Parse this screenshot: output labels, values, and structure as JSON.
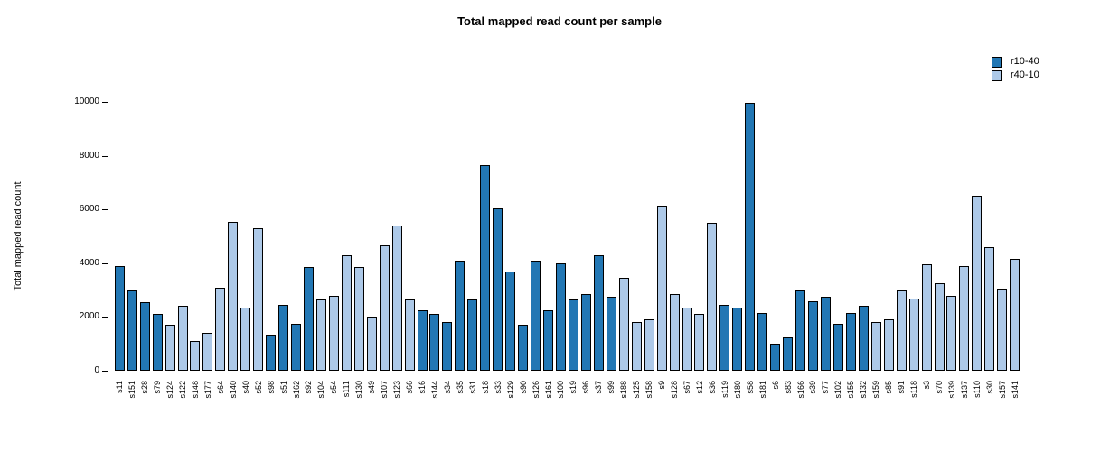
{
  "title": "Total mapped read count per sample",
  "y_axis": {
    "label": "Total mapped read count",
    "ticks": [
      0,
      2000,
      4000,
      6000,
      8000,
      10000
    ]
  },
  "legend": {
    "items": [
      {
        "label": "r10-40",
        "color": "#2277b4"
      },
      {
        "label": "r40-10",
        "color": "#adc9e8"
      }
    ]
  },
  "chart_data": {
    "type": "bar",
    "title": "Total mapped read count per sample",
    "xlabel": "",
    "ylabel": "Total mapped read count",
    "ylim": [
      0,
      10000
    ],
    "y_ticks": [
      0,
      2000,
      4000,
      6000,
      8000,
      10000
    ],
    "grid": false,
    "legend_position": "top-right",
    "series": [
      {
        "name": "r10-40",
        "color": "#2277b4"
      },
      {
        "name": "r40-10",
        "color": "#adc9e8"
      }
    ],
    "categories": [
      "s11",
      "s151",
      "s28",
      "s79",
      "s124",
      "s122",
      "s148",
      "s177",
      "s64",
      "s140",
      "s40",
      "s52",
      "s98",
      "s51",
      "s162",
      "s92",
      "s104",
      "s54",
      "s111",
      "s130",
      "s49",
      "s107",
      "s123",
      "s66",
      "s16",
      "s144",
      "s34",
      "s35",
      "s31",
      "s18",
      "s33",
      "s129",
      "s90",
      "s126",
      "s161",
      "s100",
      "s19",
      "s96",
      "s37",
      "s99",
      "s188",
      "s125",
      "s158",
      "s9",
      "s128",
      "s67",
      "s12",
      "s36",
      "s119",
      "s180",
      "s58",
      "s181",
      "s6",
      "s83",
      "s166",
      "s39",
      "s77",
      "s102",
      "s155",
      "s132",
      "s159",
      "s85",
      "s91",
      "s118",
      "s3",
      "s70",
      "s139",
      "s137",
      "s110",
      "s30",
      "s157",
      "s141"
    ],
    "groups": [
      "r10-40",
      "r10-40",
      "r10-40",
      "r10-40",
      "r40-10",
      "r40-10",
      "r40-10",
      "r40-10",
      "r40-10",
      "r40-10",
      "r40-10",
      "r40-10",
      "r10-40",
      "r10-40",
      "r10-40",
      "r10-40",
      "r40-10",
      "r40-10",
      "r40-10",
      "r40-10",
      "r40-10",
      "r40-10",
      "r40-10",
      "r40-10",
      "r10-40",
      "r10-40",
      "r10-40",
      "r10-40",
      "r10-40",
      "r10-40",
      "r10-40",
      "r10-40",
      "r10-40",
      "r10-40",
      "r10-40",
      "r10-40",
      "r10-40",
      "r10-40",
      "r10-40",
      "r10-40",
      "r40-10",
      "r40-10",
      "r40-10",
      "r40-10",
      "r40-10",
      "r40-10",
      "r40-10",
      "r40-10",
      "r10-40",
      "r10-40",
      "r10-40",
      "r10-40",
      "r10-40",
      "r10-40",
      "r10-40",
      "r10-40",
      "r10-40",
      "r10-40",
      "r10-40",
      "r10-40",
      "r40-10",
      "r40-10",
      "r40-10",
      "r40-10",
      "r40-10",
      "r40-10",
      "r40-10",
      "r40-10",
      "r40-10",
      "r40-10",
      "r40-10",
      "r40-10"
    ],
    "values": [
      3900,
      3000,
      2550,
      2100,
      1700,
      2400,
      1100,
      1400,
      3100,
      5550,
      2350,
      5300,
      1350,
      2450,
      1750,
      3850,
      2650,
      2800,
      4300,
      3850,
      2000,
      4650,
      5400,
      2650,
      2250,
      2100,
      1800,
      4100,
      2650,
      7650,
      6050,
      3700,
      1700,
      4100,
      2250,
      4000,
      2650,
      2850,
      4300,
      2750,
      3450,
      1800,
      1900,
      6150,
      2850,
      2350,
      2100,
      5500,
      2450,
      2350,
      9950,
      2150,
      1000,
      1250,
      3000,
      2600,
      2750,
      1750,
      2150,
      2400,
      1800,
      1900,
      3000,
      2700,
      3950,
      3250,
      2800,
      3900,
      6500,
      4600,
      3050,
      4150
    ]
  }
}
